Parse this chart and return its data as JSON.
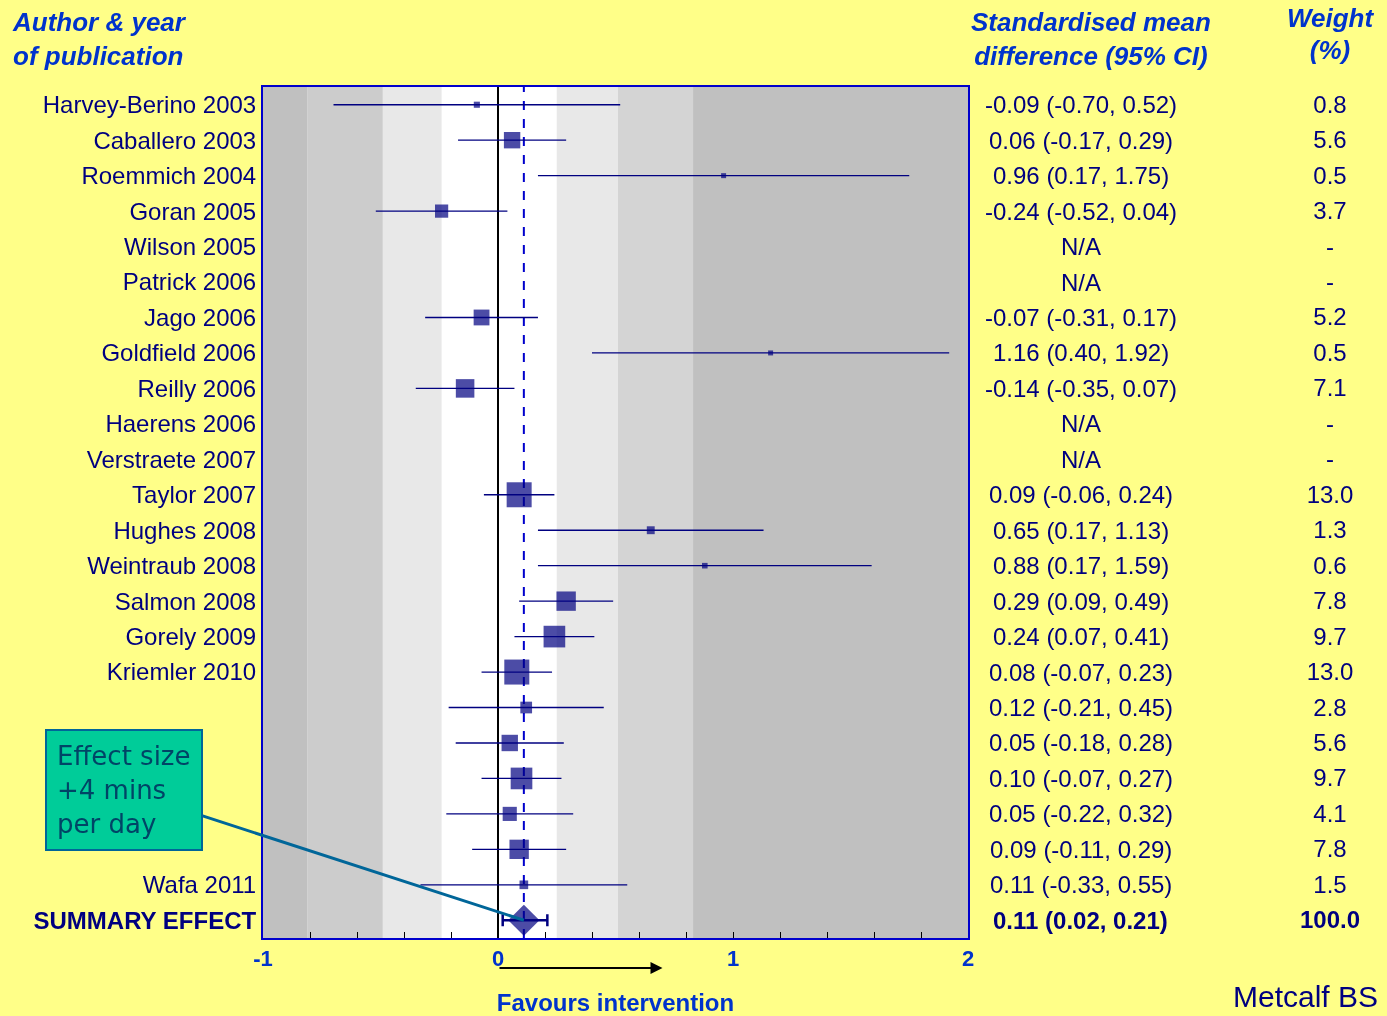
{
  "chart_data": [
    {
      "type": "scatter",
      "orientation": "horizontal",
      "categories": [
        "Harvey-Berino 2003",
        "Caballero 2003",
        "Roemmich 2004",
        "Goran 2005",
        "Wilson 2005",
        "Patrick 2006",
        "Jago 2006",
        "Goldfield 2006",
        "Reilly 2006",
        "Haerens 2006",
        "Verstraete 2007",
        "Taylor 2007",
        "Hughes 2008",
        "Weintraub 2008",
        "Salmon 2008",
        "Gorely 2009",
        "Kriemler 2010",
        null,
        null,
        null,
        null,
        null,
        "Wafa 2011",
        "SUMMARY EFFECT"
      ],
      "series": [
        {
          "color": "#000080",
          "marker": "square",
          "values": [
            -0.09,
            0.06,
            0.96,
            -0.24,
            null,
            null,
            -0.07,
            1.16,
            -0.14,
            null,
            null,
            0.09,
            0.65,
            0.88,
            0.29,
            0.24,
            0.08,
            0.12,
            0.05,
            0.1,
            0.05,
            0.09,
            0.11,
            null
          ],
          "errors": [
            [
              -0.7,
              0.52
            ],
            [
              -0.17,
              0.29
            ],
            [
              0.17,
              1.75
            ],
            [
              -0.52,
              0.04
            ],
            null,
            null,
            [
              -0.31,
              0.17
            ],
            [
              0.4,
              1.92
            ],
            [
              -0.35,
              0.07
            ],
            null,
            null,
            [
              -0.06,
              0.24
            ],
            [
              0.17,
              1.13
            ],
            [
              0.17,
              1.59
            ],
            [
              0.09,
              0.49
            ],
            [
              0.07,
              0.41
            ],
            [
              -0.07,
              0.23
            ],
            [
              -0.21,
              0.45
            ],
            [
              -0.18,
              0.28
            ],
            [
              -0.07,
              0.27
            ],
            [
              -0.22,
              0.32
            ],
            [
              -0.11,
              0.29
            ],
            [
              -0.33,
              0.55
            ],
            null
          ],
          "sizes": [
            0.06,
            0.43,
            0.04,
            0.28,
            null,
            null,
            0.4,
            0.04,
            0.55,
            null,
            null,
            1,
            0.1,
            0.05,
            0.6,
            0.75,
            1,
            0.22,
            0.43,
            0.75,
            0.32,
            0.6,
            0.12,
            null
          ],
          "value_labels": [
            "-0.09 (-0.70, 0.52)",
            "0.06 (-0.17, 0.29)",
            "0.96 (0.17, 1.75)",
            "-0.24 (-0.52, 0.04)",
            "N/A",
            "N/A",
            "-0.07 (-0.31, 0.17)",
            "1.16 (0.40, 1.92)",
            "-0.14 (-0.35, 0.07)",
            "N/A",
            "N/A",
            "0.09 (-0.06, 0.24)",
            "0.65 (0.17, 1.13)",
            "0.88 (0.17, 1.59)",
            "0.29 (0.09, 0.49)",
            "0.24 (0.07, 0.41)",
            "0.08 (-0.07, 0.23)",
            "0.12 (-0.21, 0.45)",
            "0.05 (-0.18, 0.28)",
            "0.10 (-0.07, 0.27)",
            "0.05 (-0.22, 0.32)",
            "0.09 (-0.11, 0.29)",
            "0.11 (-0.33, 0.55)",
            "0.11 (0.02, 0.21)"
          ]
        },
        {
          "color": "#000080",
          "marker": "diamond",
          "values": [
            null,
            null,
            null,
            null,
            null,
            null,
            null,
            null,
            null,
            null,
            null,
            null,
            null,
            null,
            null,
            null,
            null,
            null,
            null,
            null,
            null,
            null,
            null,
            0.11
          ],
          "errors": [
            null,
            null,
            null,
            null,
            null,
            null,
            null,
            null,
            null,
            null,
            null,
            null,
            null,
            null,
            null,
            null,
            null,
            null,
            null,
            null,
            null,
            null,
            null,
            [
              0.02,
              0.21
            ]
          ]
        }
      ],
      "xlim": [
        -1,
        2
      ],
      "xticks": [
        -1,
        {
          "value": -0.8,
          "label": null
        },
        {
          "value": -0.6,
          "label": null
        },
        {
          "value": -0.4,
          "label": null
        },
        {
          "value": -0.2,
          "label": null
        },
        0,
        {
          "value": 0.2,
          "label": null
        },
        {
          "value": 0.4,
          "label": null
        },
        {
          "value": 0.6,
          "label": null
        },
        {
          "value": 0.8,
          "label": null
        },
        1,
        {
          "value": 1.2,
          "label": null
        },
        {
          "value": 1.4,
          "label": null
        },
        {
          "value": 1.6,
          "label": null
        },
        {
          "value": 1.8,
          "label": null
        },
        2
      ],
      "xlabel": "Favours intervention",
      "ref_lines": [
        {
          "axis": "x",
          "value": 0,
          "color": "#000000",
          "line_style": "solid"
        },
        {
          "axis": "x",
          "value": 0.11,
          "color": "#0000cc",
          "line_style": "dashed"
        }
      ],
      "bands": [
        {
          "axis": "x",
          "from": -1,
          "to": -0.81,
          "color": "#c0c0c0"
        },
        {
          "axis": "x",
          "from": -0.81,
          "to": -0.49,
          "color": "#cccccc"
        },
        {
          "axis": "x",
          "from": -0.49,
          "to": -0.24,
          "color": "#e8e8e8"
        },
        {
          "axis": "x",
          "from": 0.25,
          "to": 0.51,
          "color": "#e8e8e8"
        },
        {
          "axis": "x",
          "from": 0.51,
          "to": 0.83,
          "color": "#d4d4d4"
        },
        {
          "axis": "x",
          "from": 0.83,
          "to": 2,
          "color": "#c0c0c0"
        }
      ],
      "annotations": [
        "Author & year\nof publication",
        "Standardised mean\ndifference (95% CI)",
        {
          "text": "Effect size\n+4 mins\nper day",
          "x": 0.11,
          "y": "SUMMARY EFFECT"
        },
        "Metcalf BS"
      ],
      "grid": false
    },
    {
      "type": "other",
      "title": "Weight\n(%)",
      "value_labels": [
        "0.8",
        "5.6",
        "0.5",
        "3.7",
        "-",
        "-",
        "5.2",
        "0.5",
        "7.1",
        "-",
        "-",
        "13.0",
        "1.3",
        "0.6",
        "7.8",
        "9.7",
        "13.0",
        "2.8",
        "5.6",
        "9.7",
        "4.1",
        "7.8",
        "1.5",
        "100.0"
      ]
    }
  ]
}
